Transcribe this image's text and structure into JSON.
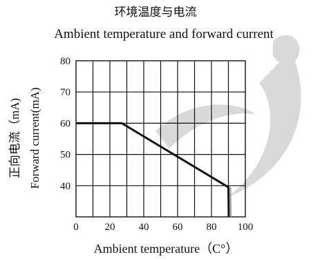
{
  "chart_data": {
    "type": "line",
    "title": "环境温度与电流",
    "subtitle": "Ambient temperature and forward current",
    "xlabel": "Ambient temperature（C°）",
    "ylabel": [
      "正向电流（mA)",
      "Forward current(mA)"
    ],
    "xlim": [
      0,
      100
    ],
    "ylim": [
      30,
      80
    ],
    "x_ticks": [
      0,
      20,
      40,
      60,
      80,
      100
    ],
    "y_ticks": [
      40,
      50,
      60,
      70,
      80
    ],
    "grid": true,
    "series": [
      {
        "x": [
          0,
          27,
          90,
          90.2
        ],
        "y": [
          60,
          60,
          39.5,
          30
        ]
      }
    ]
  },
  "colors": {
    "line": "#111111",
    "grid": "#111111",
    "background": "#ffffff",
    "watermark": "#d9d9d9"
  }
}
